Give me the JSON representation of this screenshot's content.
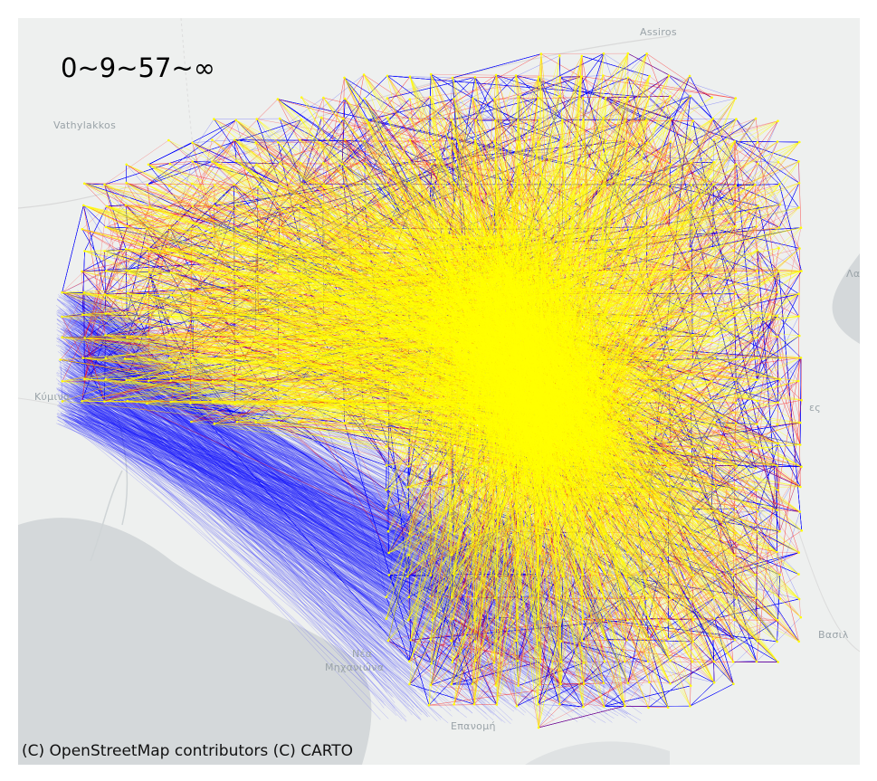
{
  "legend": {
    "title": "0~9~57~∞",
    "bins": [
      {
        "range": "0–9",
        "color": "#0000ff"
      },
      {
        "range": "9–57",
        "color": "#ff0000"
      },
      {
        "range": "57–∞",
        "color": "#ffff00"
      }
    ]
  },
  "attribution": "(C) OpenStreetMap contributors (C) CARTO",
  "places": [
    {
      "name": "Assiros"
    },
    {
      "name": "Vathylakkos"
    },
    {
      "name": "Κύμινα"
    },
    {
      "name": "Νέα"
    },
    {
      "name": "Μηχανιώνα"
    },
    {
      "name": "Επανομή"
    },
    {
      "name": "Βασιλ"
    },
    {
      "name": "Λα"
    },
    {
      "name": "ες"
    }
  ],
  "colors": {
    "land": "#eef0ef",
    "water": "#d4d8da",
    "road": "#d9d9d9",
    "low": "#0000ff",
    "mid": "#ff0000",
    "high": "#ffff00"
  }
}
